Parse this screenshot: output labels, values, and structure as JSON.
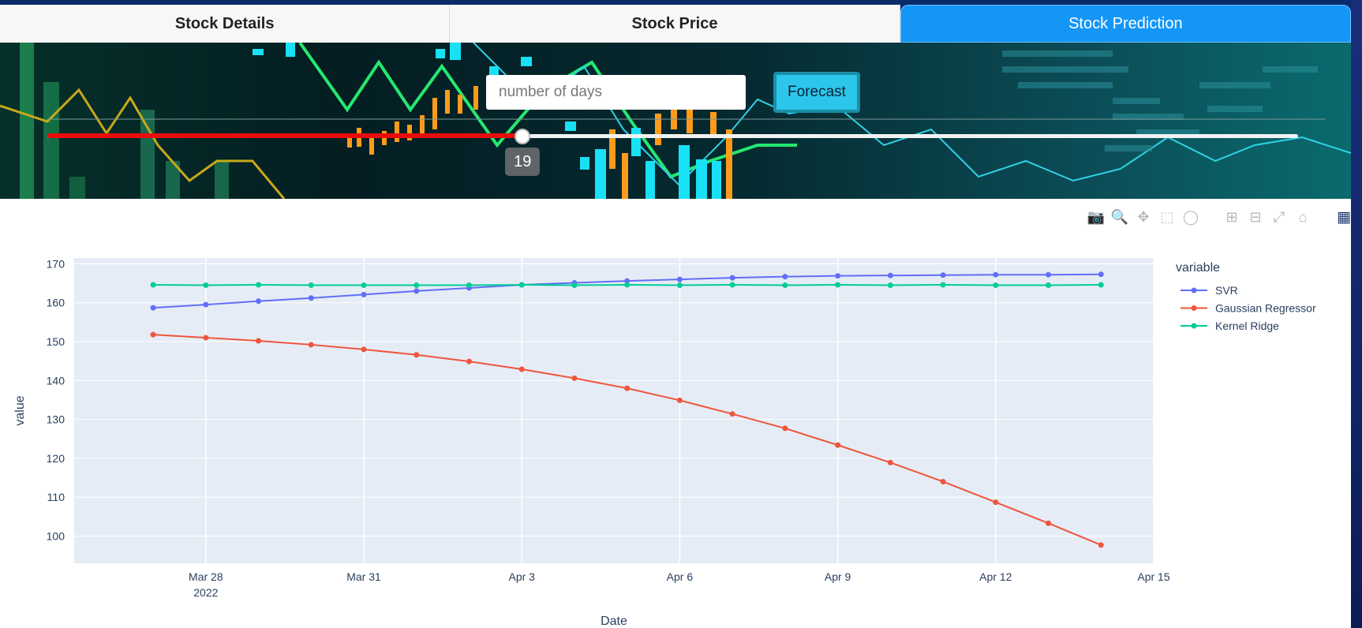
{
  "tabs": [
    {
      "label": "Stock Details",
      "active": false
    },
    {
      "label": "Stock Price",
      "active": false
    },
    {
      "label": "Stock Prediction",
      "active": true
    }
  ],
  "forecast_form": {
    "days_placeholder": "number of days",
    "days_value": "",
    "button_label": "Forecast",
    "slider_value": "19",
    "slider_fraction": 0.38
  },
  "modebar": {
    "icons": [
      "camera-icon",
      "zoom-icon",
      "pan-icon",
      "box-select-icon",
      "lasso-select-icon",
      "zoom-in-icon",
      "zoom-out-icon",
      "autoscale-icon",
      "reset-axes-icon",
      "plotly-logo-icon"
    ]
  },
  "colors": {
    "accent": "#1496f7",
    "slider_track": "#e80c0c",
    "forecast_button": "#2cc6ea",
    "plot_bg": "#e5ecf6"
  },
  "chart_data": {
    "type": "line",
    "xlabel": "Date",
    "ylabel": "value",
    "legend_title": "variable",
    "legend_position": "right",
    "grid": true,
    "x_tick_labels": [
      "Mar 28",
      "Mar 31",
      "Apr 3",
      "Apr 6",
      "Apr 9",
      "Apr 12",
      "Apr 15"
    ],
    "x_tick_sublabel": "2022",
    "x_tick_dates": [
      "2022-03-28",
      "2022-03-31",
      "2022-04-03",
      "2022-04-06",
      "2022-04-09",
      "2022-04-12",
      "2022-04-15"
    ],
    "xlim": [
      "2022-03-25T12:00",
      "2022-04-15T00:00"
    ],
    "y_ticks": [
      100,
      110,
      120,
      130,
      140,
      150,
      160,
      170
    ],
    "ylim": [
      93,
      171.5
    ],
    "x": [
      "2022-03-27",
      "2022-03-28",
      "2022-03-29",
      "2022-03-30",
      "2022-03-31",
      "2022-04-01",
      "2022-04-02",
      "2022-04-03",
      "2022-04-04",
      "2022-04-05",
      "2022-04-06",
      "2022-04-07",
      "2022-04-08",
      "2022-04-09",
      "2022-04-10",
      "2022-04-11",
      "2022-04-12",
      "2022-04-13",
      "2022-04-14"
    ],
    "series": [
      {
        "name": "SVR",
        "color": "#636efa",
        "values": [
          158.7,
          159.5,
          160.4,
          161.2,
          162.1,
          163.0,
          163.8,
          164.6,
          165.1,
          165.6,
          166.0,
          166.4,
          166.7,
          166.9,
          167.0,
          167.1,
          167.2,
          167.2,
          167.3
        ]
      },
      {
        "name": "Gaussian Regressor",
        "color": "#ef553b",
        "values": [
          151.8,
          151.0,
          150.2,
          149.2,
          148.0,
          146.6,
          144.9,
          142.9,
          140.6,
          138.0,
          134.9,
          131.4,
          127.7,
          123.4,
          118.9,
          114.0,
          108.7,
          103.3,
          97.7
        ]
      },
      {
        "name": "Kernel Ridge",
        "color": "#00cc96",
        "values": [
          164.6,
          164.5,
          164.6,
          164.5,
          164.5,
          164.5,
          164.5,
          164.6,
          164.5,
          164.6,
          164.5,
          164.6,
          164.5,
          164.6,
          164.5,
          164.6,
          164.5,
          164.5,
          164.6
        ]
      }
    ]
  }
}
